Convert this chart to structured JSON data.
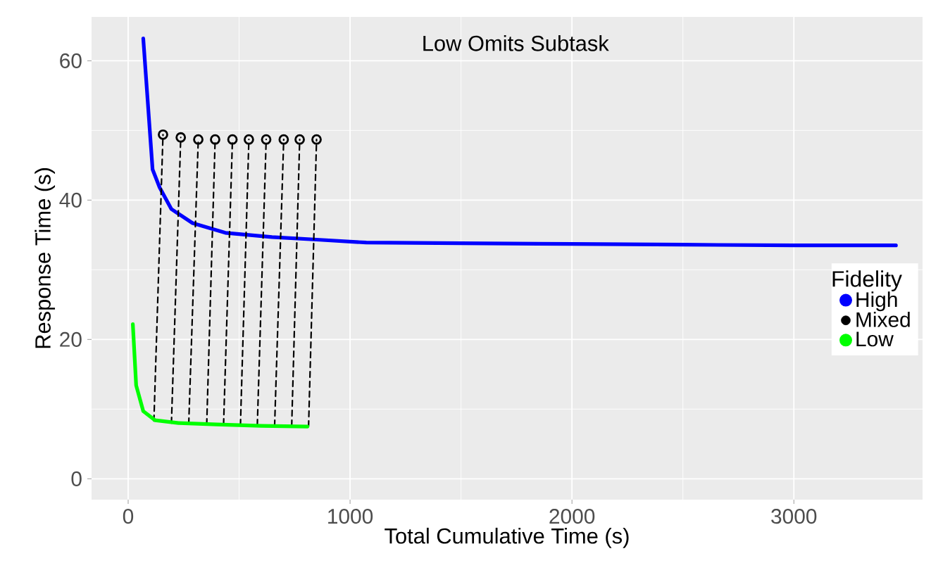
{
  "chart_data": {
    "type": "line",
    "title": "Low Omits Subtask",
    "xlabel": "Total Cumulative Time (s)",
    "ylabel": "Response Time (s)",
    "legend_title": "Fidelity",
    "legend": "right",
    "grid": true,
    "xlim": [
      -165,
      3580
    ],
    "ylim": [
      -3,
      66.3
    ],
    "xticks": [
      0,
      1000,
      2000,
      3000
    ],
    "yticks": [
      0,
      20,
      40,
      60
    ],
    "series": [
      {
        "name": "High",
        "color": "#0000ff",
        "marker": "none",
        "x": [
          68,
          110,
          142,
          195,
          290,
          438,
          648,
          863,
          1073,
          1500,
          2000,
          2500,
          3000,
          3460
        ],
        "values": [
          63.2,
          44.4,
          41.8,
          38.7,
          36.7,
          35.3,
          34.7,
          34.3,
          33.9,
          33.8,
          33.7,
          33.6,
          33.5,
          33.5
        ]
      },
      {
        "type": "line",
        "color": "#000000",
        "line_style": "dashed",
        "marker": "none",
        "x": [
          116,
          157,
          null,
          195,
          237,
          null,
          273,
          316,
          null,
          354,
          392,
          null,
          430,
          470,
          null,
          506,
          544,
          null,
          582,
          622,
          null,
          660,
          701,
          null,
          737,
          773,
          null,
          813,
          849
        ],
        "values": [
          8.3,
          49.4,
          null,
          8.0,
          49.0,
          null,
          7.9,
          48.7,
          null,
          7.8,
          48.7,
          null,
          7.8,
          48.7,
          null,
          7.7,
          48.7,
          null,
          7.7,
          48.7,
          null,
          7.6,
          48.7,
          null,
          7.6,
          48.7,
          null,
          7.5,
          48.7
        ]
      },
      {
        "name": "Mixed",
        "type": "scatter",
        "color": "#000000",
        "marker": "circle",
        "x": [
          157,
          237,
          316,
          392,
          470,
          544,
          622,
          701,
          773,
          849
        ],
        "values": [
          49.4,
          49.0,
          48.7,
          48.7,
          48.7,
          48.7,
          48.7,
          48.7,
          48.7,
          48.7
        ]
      },
      {
        "name": "Low",
        "color": "#00ff00",
        "marker": "none",
        "x": [
          21,
          36,
          68,
          121,
          227,
          400,
          600,
          808
        ],
        "values": [
          22.2,
          13.4,
          9.7,
          8.4,
          8.0,
          7.8,
          7.6,
          7.5
        ]
      }
    ]
  }
}
